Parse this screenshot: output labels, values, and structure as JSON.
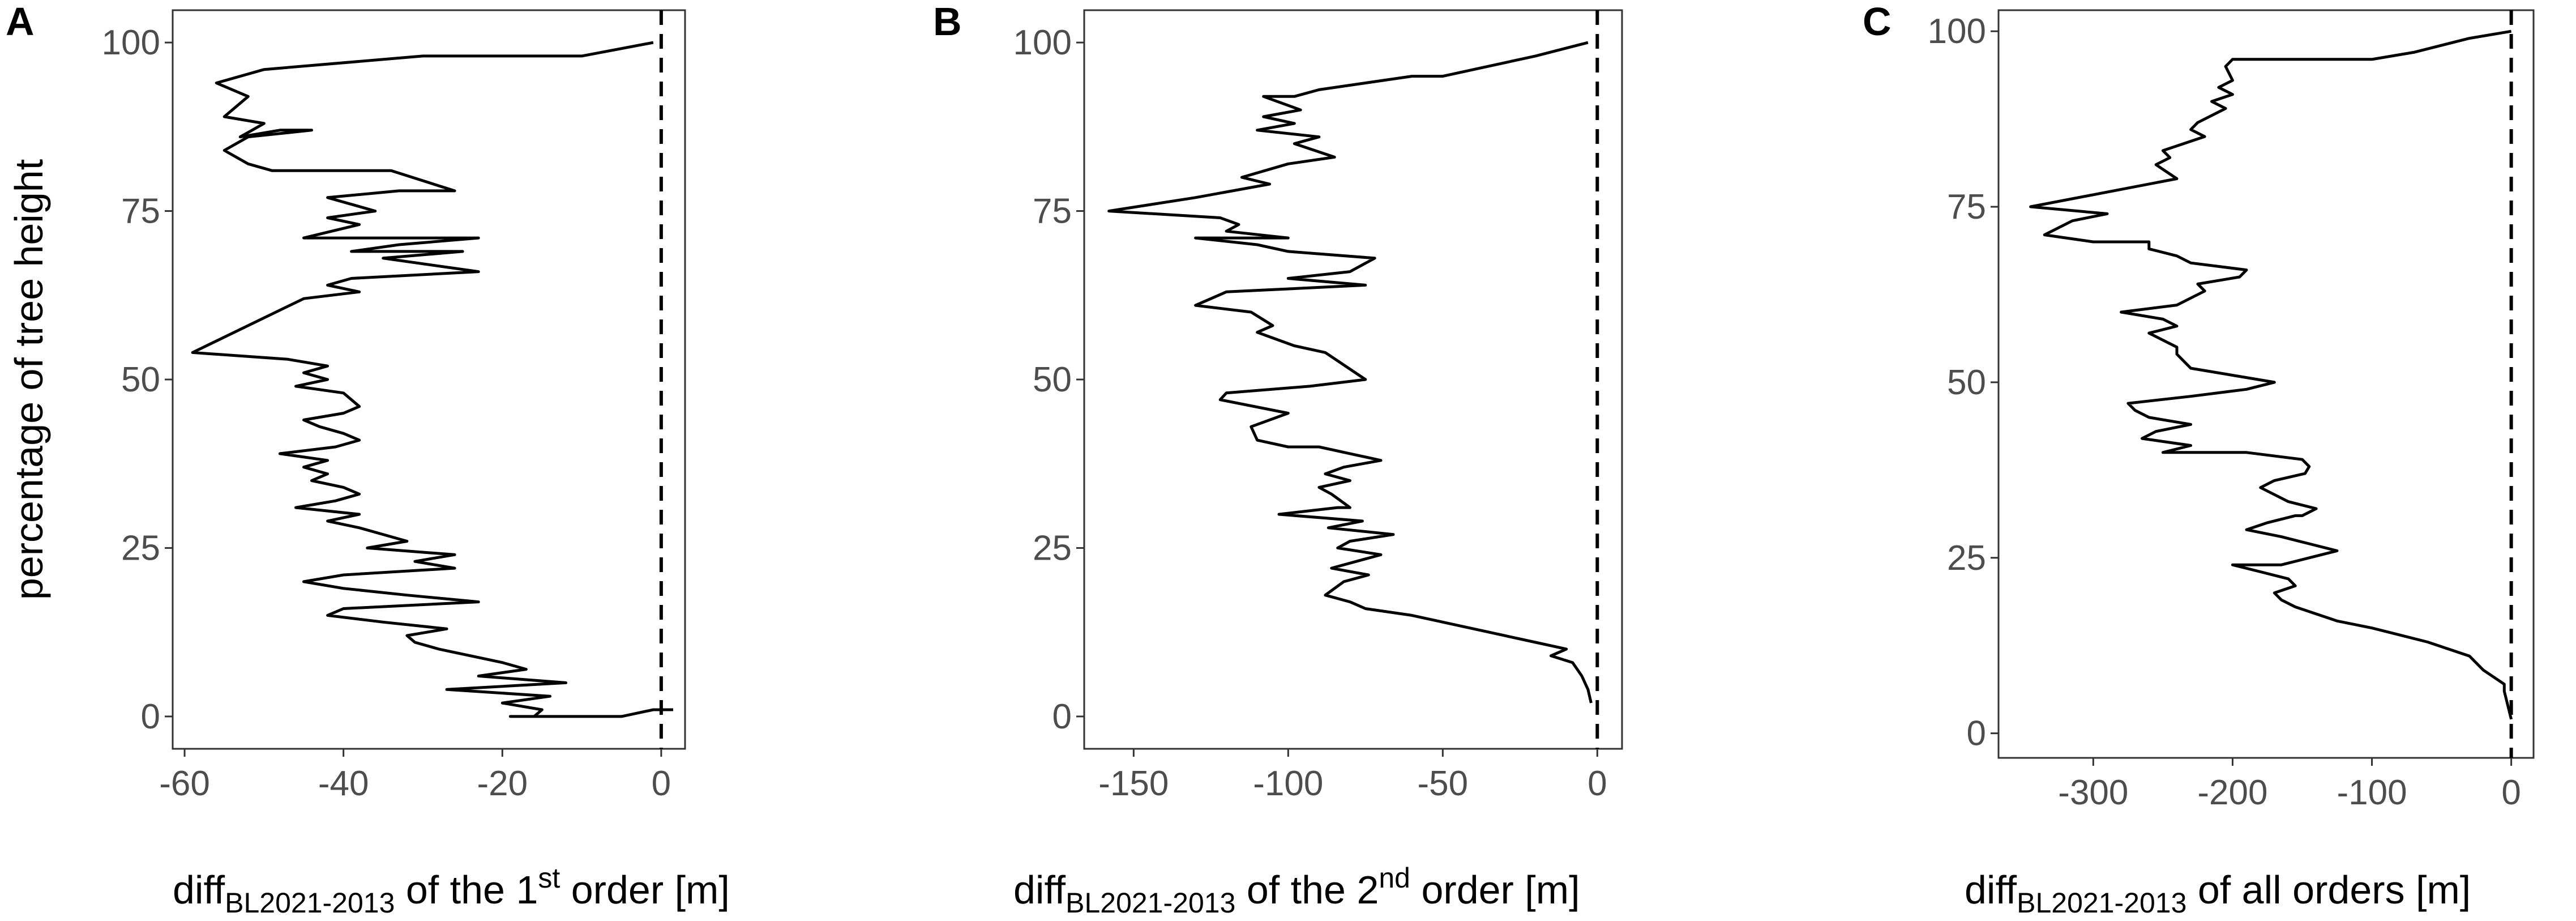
{
  "figure": {
    "ylabel": "percentage of tree height"
  },
  "chart_data": [
    {
      "type": "line",
      "panel": "A",
      "xlabel": {
        "pre": "diff",
        "sub": "BL2021-2013",
        "mid": " of the 1",
        "sup": "st",
        "post": " order [m]"
      },
      "ylabel": "percentage of tree height",
      "xlim": [
        -61.5,
        3
      ],
      "ylim": [
        -4.8,
        104.8
      ],
      "xticks": [
        -60,
        -40,
        -20,
        0
      ],
      "yticks": [
        0,
        25,
        50,
        75,
        100
      ],
      "grid": false,
      "reference_line": {
        "x": 0,
        "style": "dashed"
      },
      "series": [
        {
          "x": [
            -1,
            -10,
            -30,
            -50,
            -56,
            -52,
            -55,
            -50,
            -53,
            -48,
            -44,
            -52,
            -55,
            -52,
            -49,
            -43,
            -34,
            -26,
            -33,
            -42,
            -36,
            -42,
            -38,
            -45,
            -23,
            -33,
            -39,
            -25,
            -35,
            -23,
            -39,
            -42,
            -38,
            -45,
            -59,
            -47,
            -42,
            -45,
            -42,
            -46,
            -40,
            -38,
            -40,
            -45,
            -43,
            -40,
            -38,
            -41,
            -48,
            -42,
            -45,
            -42,
            -44,
            -40,
            -38,
            -41,
            -46,
            -38,
            -42,
            -38,
            -35,
            -32,
            -37,
            -26,
            -31,
            -26,
            -40,
            -45,
            -40,
            -32,
            -23,
            -40,
            -42,
            -35,
            -27,
            -32,
            -31,
            -28,
            -24,
            -20,
            -17,
            -23,
            -12,
            -27,
            -14,
            -20,
            -15,
            -16,
            -10,
            -19,
            -12,
            -5,
            -7,
            -5,
            -5,
            -1,
            1.5
          ],
          "y": [
            100,
            98,
            98,
            96,
            94,
            92,
            89,
            88,
            86,
            87,
            87,
            86,
            84,
            82,
            81,
            81,
            81,
            78,
            78,
            77,
            75,
            74,
            73,
            71,
            71,
            70,
            69,
            69,
            68,
            66,
            65,
            64,
            63,
            62,
            54,
            53,
            52,
            51,
            50,
            49,
            48,
            46,
            45,
            44,
            43,
            42,
            41,
            40,
            39,
            38,
            37,
            36,
            35,
            34,
            33,
            32,
            31,
            30,
            29,
            28,
            27,
            26,
            25,
            24,
            23,
            22,
            21,
            20,
            19,
            18,
            17,
            16,
            15,
            14,
            13,
            12,
            11,
            10,
            9,
            8,
            7,
            6,
            5,
            4,
            3,
            2,
            1,
            0,
            0,
            0,
            0,
            0,
            0,
            0,
            0,
            1,
            1
          ]
        }
      ]
    },
    {
      "type": "line",
      "panel": "B",
      "xlabel": {
        "pre": "diff",
        "sub": "BL2021-2013",
        "mid": " of the 2",
        "sup": "nd",
        "post": " order [m]"
      },
      "xlim": [
        -166,
        8
      ],
      "ylim": [
        -4.8,
        104.8
      ],
      "xticks": [
        -150,
        -100,
        -50,
        0
      ],
      "yticks": [
        0,
        25,
        50,
        75,
        100
      ],
      "grid": false,
      "reference_line": {
        "x": 0,
        "style": "dashed"
      },
      "series": [
        {
          "x": [
            -3,
            -20,
            -40,
            -50,
            -60,
            -75,
            -90,
            -98,
            -108,
            -96,
            -108,
            -98,
            -110,
            -90,
            -98,
            -85,
            -100,
            -115,
            -106,
            -130,
            -158,
            -122,
            -116,
            -120,
            -100,
            -130,
            -110,
            -100,
            -72,
            -80,
            -100,
            -75,
            -120,
            -130,
            -112,
            -105,
            -110,
            -104,
            -98,
            -88,
            -75,
            -93,
            -120,
            -122,
            -100,
            -112,
            -110,
            -100,
            -90,
            -80,
            -70,
            -82,
            -88,
            -80,
            -90,
            -86,
            -83,
            -80,
            -84,
            -103,
            -76,
            -87,
            -66,
            -80,
            -84,
            -70,
            -86,
            -74,
            -82,
            -88,
            -80,
            -75,
            -60,
            -50,
            -40,
            -30,
            -20,
            -10,
            -15,
            -8,
            -5,
            -3,
            -2
          ],
          "y": [
            100,
            98,
            96,
            95,
            95,
            94,
            93,
            92,
            92,
            90,
            89,
            88,
            87,
            86,
            85,
            83,
            82,
            80,
            79,
            77,
            75,
            74,
            73,
            72,
            71,
            71,
            70,
            69,
            68,
            66,
            65,
            64,
            63,
            61,
            60,
            58,
            57,
            56,
            55,
            54,
            50,
            49,
            48,
            47,
            45,
            43,
            41,
            40,
            40,
            39,
            38,
            37,
            36,
            35,
            34,
            33,
            32,
            31,
            31,
            30,
            29,
            28,
            27,
            26,
            25,
            24,
            22,
            21,
            20,
            18,
            17,
            16,
            15,
            14,
            13,
            12,
            11,
            10,
            9,
            8,
            6,
            4,
            2
          ]
        }
      ]
    },
    {
      "type": "line",
      "panel": "C",
      "xlabel": {
        "pre": "diff",
        "sub": "BL2021-2013",
        "mid": " of all orders [m]",
        "sup": "",
        "post": ""
      },
      "xlim": [
        -368,
        16
      ],
      "ylim": [
        -3.5,
        103
      ],
      "xticks": [
        -300,
        -200,
        -100,
        0
      ],
      "yticks": [
        0,
        25,
        50,
        75,
        100
      ],
      "grid": false,
      "reference_line": {
        "x": 0,
        "style": "dashed"
      },
      "series": [
        {
          "x": [
            0,
            -30,
            -70,
            -100,
            -150,
            -200,
            -205,
            -200,
            -210,
            -200,
            -215,
            -205,
            -225,
            -230,
            -220,
            -250,
            -245,
            -255,
            -240,
            -345,
            -290,
            -315,
            -335,
            -300,
            -260,
            -260,
            -240,
            -230,
            -190,
            -195,
            -225,
            -220,
            -230,
            -240,
            -280,
            -250,
            -240,
            -260,
            -250,
            -240,
            -240,
            -235,
            -230,
            -170,
            -190,
            -230,
            -275,
            -270,
            -260,
            -230,
            -255,
            -265,
            -230,
            -250,
            -190,
            -150,
            -145,
            -148,
            -170,
            -180,
            -170,
            -160,
            -140,
            -150,
            -155,
            -175,
            -190,
            -165,
            -145,
            -125,
            -145,
            -165,
            -200,
            -180,
            -160,
            -155,
            -170,
            -165,
            -155,
            -140,
            -125,
            -100,
            -80,
            -60,
            -45,
            -30,
            -20,
            -5,
            -5,
            0
          ],
          "y": [
            100,
            99,
            97,
            96,
            96,
            96,
            95,
            93,
            92,
            91,
            90,
            89,
            87,
            86,
            85,
            83,
            82,
            81,
            79,
            75,
            74,
            73,
            71,
            70,
            70,
            69,
            68,
            67,
            66,
            65,
            64,
            63,
            62,
            61,
            60,
            59,
            58,
            57,
            56,
            55,
            54,
            53,
            52,
            50,
            49,
            48,
            47,
            46,
            45,
            44,
            43,
            42,
            41,
            40,
            40,
            39,
            38,
            37,
            36,
            35,
            34,
            33,
            32,
            31,
            31,
            30,
            29,
            28,
            27,
            26,
            25,
            24,
            24,
            23,
            22,
            21,
            20,
            19,
            18,
            17,
            16,
            15,
            14,
            13,
            12,
            11,
            9,
            7,
            6,
            2
          ]
        }
      ]
    }
  ]
}
